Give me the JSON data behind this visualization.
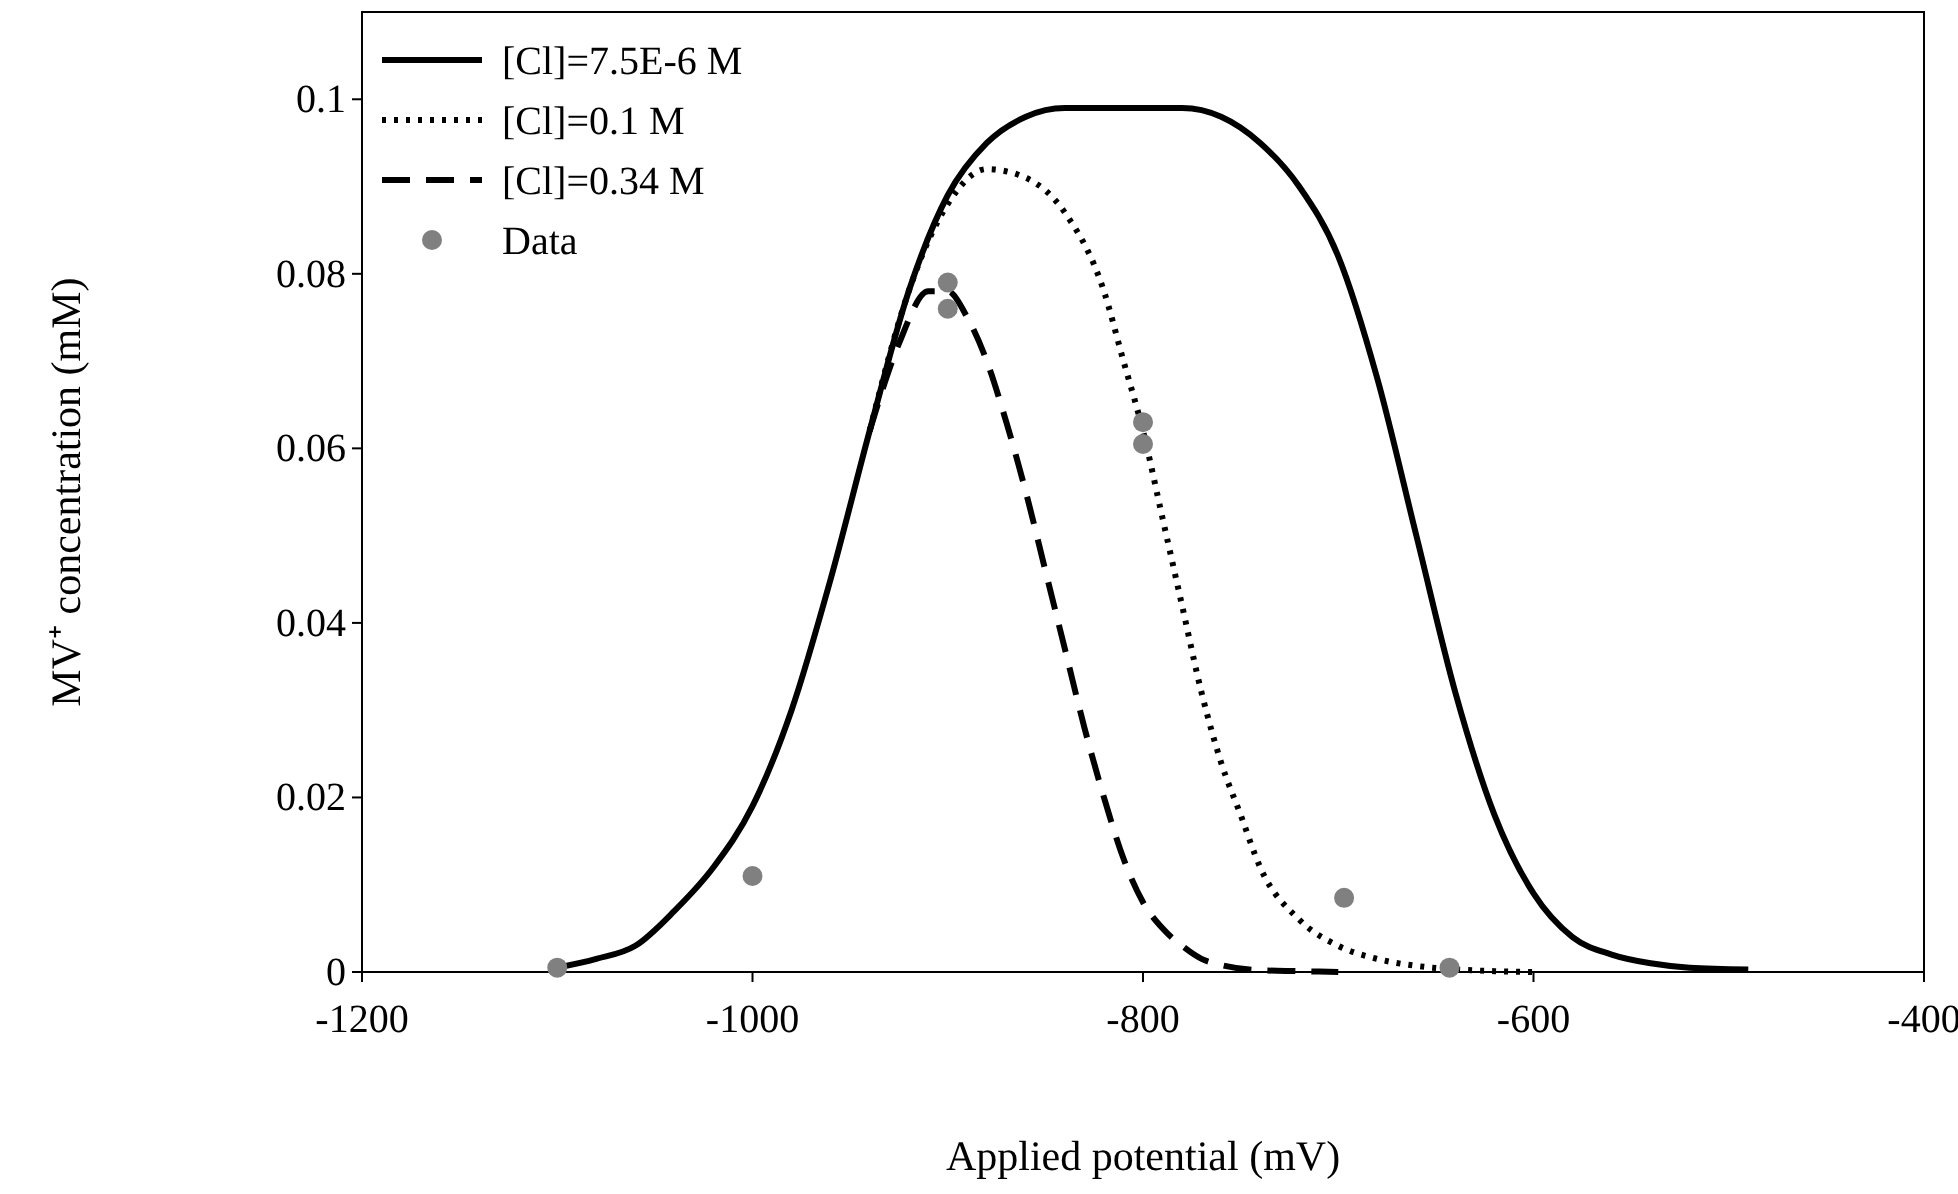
{
  "chart_data": {
    "type": "line",
    "xlabel": "Applied potential (mV)",
    "ylabel": "MV⁺ concentration (mM)",
    "xlim": [
      -1200,
      -400
    ],
    "xticks": [
      -1200,
      -1000,
      -800,
      -600,
      -400
    ],
    "ylim": [
      0,
      0.11
    ],
    "yticks": [
      0,
      0.02,
      0.04,
      0.06,
      0.08,
      0.1
    ],
    "grid": false,
    "legend": "top left",
    "series": [
      {
        "name": "[Cl]=7.5E-6 M",
        "color": "#000000",
        "line_style": "solid",
        "x": [
          -1100,
          -1080,
          -1060,
          -1040,
          -1020,
          -1000,
          -980,
          -960,
          -940,
          -920,
          -900,
          -880,
          -860,
          -840,
          -820,
          -800,
          -780,
          -760,
          -740,
          -720,
          -700,
          -680,
          -660,
          -640,
          -620,
          -600,
          -580,
          -560,
          -540,
          -520,
          -490
        ],
        "values": [
          0.0005,
          0.0015,
          0.003,
          0.007,
          0.012,
          0.019,
          0.03,
          0.045,
          0.062,
          0.078,
          0.089,
          0.095,
          0.098,
          0.099,
          0.099,
          0.099,
          0.099,
          0.098,
          0.095,
          0.09,
          0.082,
          0.068,
          0.05,
          0.032,
          0.018,
          0.009,
          0.004,
          0.002,
          0.001,
          0.0005,
          0.0003
        ]
      },
      {
        "name": "[Cl]=0.1 M",
        "color": "#000000",
        "line_style": "dotted",
        "x": [
          -940,
          -920,
          -900,
          -880,
          -860,
          -840,
          -820,
          -810,
          -800,
          -790,
          -780,
          -770,
          -760,
          -750,
          -740,
          -720,
          -700,
          -680,
          -660,
          -640,
          -620,
          -600
        ],
        "values": [
          0.062,
          0.078,
          0.088,
          0.092,
          0.091,
          0.087,
          0.078,
          0.07,
          0.062,
          0.052,
          0.042,
          0.032,
          0.024,
          0.018,
          0.012,
          0.006,
          0.003,
          0.0015,
          0.0007,
          0.0003,
          0.0001,
          0
        ]
      },
      {
        "name": "[Cl]=0.34 M",
        "color": "#000000",
        "line_style": "dashed",
        "x": [
          -940,
          -925,
          -910,
          -900,
          -890,
          -880,
          -870,
          -860,
          -850,
          -840,
          -830,
          -820,
          -810,
          -800,
          -790,
          -780,
          -770,
          -760,
          -740,
          -720,
          -700
        ],
        "values": [
          0.062,
          0.072,
          0.078,
          0.078,
          0.075,
          0.07,
          0.063,
          0.055,
          0.046,
          0.037,
          0.028,
          0.02,
          0.013,
          0.008,
          0.005,
          0.003,
          0.0015,
          0.0008,
          0.0002,
          0.0001,
          0
        ]
      },
      {
        "name": "Data",
        "type": "scatter",
        "color": "#808080",
        "marker": "circle",
        "x": [
          -1100,
          -1000,
          -900,
          -900,
          -800,
          -800,
          -697,
          -643
        ],
        "values": [
          0.0005,
          0.011,
          0.079,
          0.076,
          0.063,
          0.0605,
          0.0085,
          0.0005
        ]
      }
    ]
  }
}
